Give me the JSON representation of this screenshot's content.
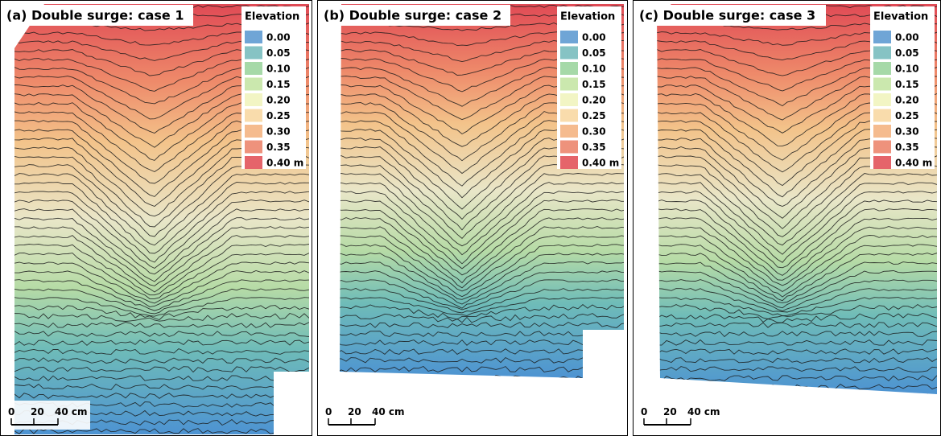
{
  "panels": [
    {
      "title": "(a) Double surge: case 1",
      "legend": {
        "title": "Elevation",
        "items": [
          {
            "label": "0.00",
            "color": "#6fa5d6"
          },
          {
            "label": "0.05",
            "color": "#86c3c4"
          },
          {
            "label": "0.10",
            "color": "#a6d9a8"
          },
          {
            "label": "0.15",
            "color": "#cbe8ae"
          },
          {
            "label": "0.20",
            "color": "#f2f5c4"
          },
          {
            "label": "0.25",
            "color": "#f9dcac"
          },
          {
            "label": "0.30",
            "color": "#f5bb8e"
          },
          {
            "label": "0.35",
            "color": "#ee927c"
          },
          {
            "label": "0.40 m",
            "color": "#e5646a"
          }
        ]
      },
      "scale_bar": [
        "0",
        "20",
        "40 cm"
      ]
    },
    {
      "title": "(b) Double surge: case 2",
      "legend": {
        "title": "Elevation",
        "items": [
          {
            "label": "0.00",
            "color": "#6fa5d6"
          },
          {
            "label": "0.05",
            "color": "#86c3c4"
          },
          {
            "label": "0.10",
            "color": "#a6d9a8"
          },
          {
            "label": "0.15",
            "color": "#cbe8ae"
          },
          {
            "label": "0.20",
            "color": "#f2f5c4"
          },
          {
            "label": "0.25",
            "color": "#f9dcac"
          },
          {
            "label": "0.30",
            "color": "#f5bb8e"
          },
          {
            "label": "0.35",
            "color": "#ee927c"
          },
          {
            "label": "0.40 m",
            "color": "#e5646a"
          }
        ]
      },
      "scale_bar": [
        "0",
        "20",
        "40 cm"
      ]
    },
    {
      "title": "(c) Double surge: case 3",
      "legend": {
        "title": "Elevation",
        "items": [
          {
            "label": "0.00",
            "color": "#6fa5d6"
          },
          {
            "label": "0.05",
            "color": "#86c3c4"
          },
          {
            "label": "0.10",
            "color": "#a6d9a8"
          },
          {
            "label": "0.15",
            "color": "#cbe8ae"
          },
          {
            "label": "0.20",
            "color": "#f2f5c4"
          },
          {
            "label": "0.25",
            "color": "#f9dcac"
          },
          {
            "label": "0.30",
            "color": "#f5bb8e"
          },
          {
            "label": "0.35",
            "color": "#ee927c"
          },
          {
            "label": "0.40 m",
            "color": "#e5646a"
          }
        ]
      },
      "scale_bar": [
        "0",
        "20",
        "40 cm"
      ]
    }
  ]
}
